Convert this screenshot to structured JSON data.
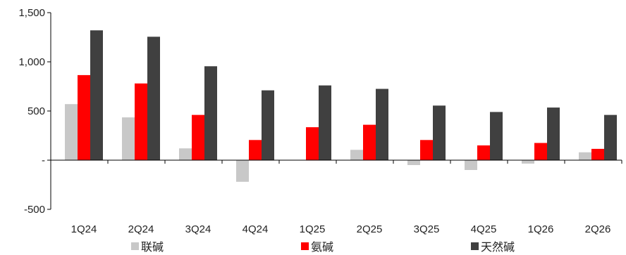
{
  "chart_data": {
    "type": "bar",
    "categories": [
      "1Q24",
      "2Q24",
      "3Q24",
      "4Q24",
      "1Q25",
      "2Q25",
      "3Q25",
      "4Q25",
      "1Q26",
      "2Q26"
    ],
    "series": [
      {
        "name": "联碱",
        "color": "#c8c8c8",
        "values": [
          570,
          435,
          120,
          -220,
          0,
          105,
          -50,
          -100,
          -35,
          80
        ]
      },
      {
        "name": "氨碱",
        "color": "#ff0000",
        "values": [
          865,
          780,
          460,
          205,
          335,
          360,
          205,
          150,
          175,
          115
        ]
      },
      {
        "name": "天然碱",
        "color": "#404040",
        "values": [
          1320,
          1255,
          955,
          710,
          760,
          725,
          555,
          490,
          535,
          460
        ]
      }
    ],
    "yticks": [
      {
        "value": 1500,
        "label": "1,500"
      },
      {
        "value": 1000,
        "label": "1,000"
      },
      {
        "value": 500,
        "label": "500"
      },
      {
        "value": 0,
        "label": "-"
      },
      {
        "value": -500,
        "label": "-500"
      }
    ],
    "ylim": [
      -500,
      1500
    ],
    "grid": false,
    "legend_position": "bottom"
  }
}
